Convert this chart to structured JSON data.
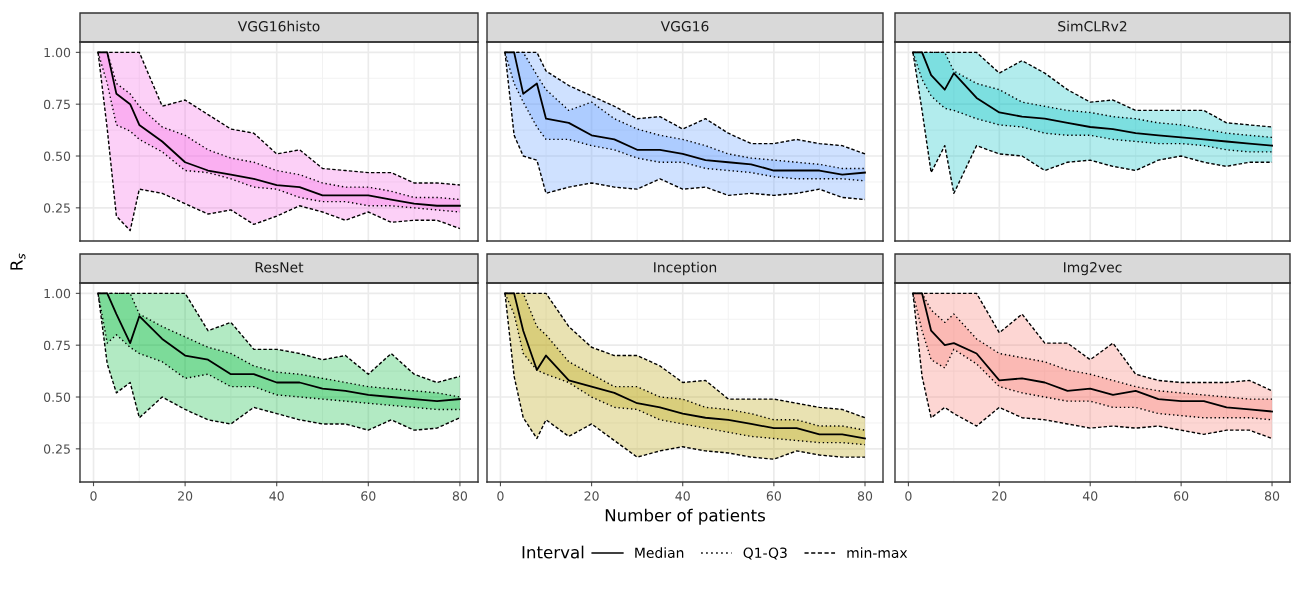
{
  "chart_data": [
    {
      "type": "line",
      "title": "VGG16histo",
      "ylabel": "R$_{s}$",
      "legend": "bottom",
      "legend_title": "Interval",
      "grid": true,
      "tick_labels": "y",
      "color": "#f564e3",
      "xlim": [
        -2.95,
        83.95
      ],
      "ylim": [
        0.09,
        1.05
      ],
      "xticks": [
        {
          "value": 0,
          "label": null
        },
        {
          "value": 20,
          "label": null
        },
        {
          "value": 40,
          "label": null
        },
        {
          "value": 60,
          "label": null
        },
        {
          "value": 80,
          "label": null
        }
      ],
      "yticks": [
        {
          "value": 0.25,
          "label": "0.25"
        },
        {
          "value": 0.5,
          "label": "0.50"
        },
        {
          "value": 0.75,
          "label": "0.75"
        },
        {
          "value": 1.0,
          "label": "1.00"
        }
      ],
      "x": [
        1,
        3,
        5,
        8,
        10,
        15,
        20,
        25,
        30,
        35,
        40,
        45,
        50,
        55,
        60,
        65,
        70,
        75,
        80
      ],
      "series": [
        {
          "name": "min-max",
          "color": "#000000",
          "line_style": "dashed",
          "values": [
            1.0,
            0.63,
            0.21,
            0.14,
            0.34,
            0.32,
            0.27,
            0.22,
            0.24,
            0.17,
            0.21,
            0.26,
            0.23,
            0.19,
            0.23,
            0.18,
            0.19,
            0.19,
            0.15
          ]
        },
        {
          "color": "#000000",
          "line_style": "dashed",
          "values": [
            1.0,
            1.0,
            1.0,
            1.0,
            1.0,
            0.74,
            0.77,
            0.7,
            0.63,
            0.61,
            0.51,
            0.53,
            0.44,
            0.43,
            0.42,
            0.42,
            0.37,
            0.37,
            0.36
          ]
        },
        {
          "name": "Q1-Q3",
          "color": "#000000",
          "line_style": "dotted",
          "values": [
            1.0,
            0.85,
            0.65,
            0.62,
            0.58,
            0.52,
            0.43,
            0.42,
            0.39,
            0.35,
            0.34,
            0.3,
            0.28,
            0.28,
            0.26,
            0.26,
            0.25,
            0.24,
            0.23
          ]
        },
        {
          "color": "#000000",
          "line_style": "dotted",
          "values": [
            1.0,
            1.0,
            0.85,
            0.8,
            0.74,
            0.64,
            0.6,
            0.53,
            0.49,
            0.47,
            0.43,
            0.41,
            0.37,
            0.35,
            0.35,
            0.33,
            0.3,
            0.3,
            0.29
          ]
        },
        {
          "name": "Median",
          "color": "#000000",
          "line_style": "solid",
          "values": [
            1.0,
            1.0,
            0.8,
            0.75,
            0.65,
            0.57,
            0.47,
            0.43,
            0.41,
            0.39,
            0.36,
            0.35,
            0.31,
            0.31,
            0.31,
            0.29,
            0.27,
            0.26,
            0.26
          ]
        }
      ]
    },
    {
      "type": "line",
      "title": "VGG16",
      "grid": true,
      "tick_labels": false,
      "color": "#619cff",
      "xlim": [
        -2.95,
        83.95
      ],
      "ylim": [
        0.09,
        1.05
      ],
      "xticks": [
        {
          "value": 0,
          "label": null
        },
        {
          "value": 20,
          "label": null
        },
        {
          "value": 40,
          "label": null
        },
        {
          "value": 60,
          "label": null
        },
        {
          "value": 80,
          "label": null
        }
      ],
      "yticks": [
        {
          "value": 0.25,
          "label": null
        },
        {
          "value": 0.5,
          "label": null
        },
        {
          "value": 0.75,
          "label": null
        },
        {
          "value": 1.0,
          "label": null
        }
      ],
      "x": [
        1,
        3,
        5,
        8,
        10,
        15,
        20,
        25,
        30,
        35,
        40,
        45,
        50,
        55,
        60,
        65,
        70,
        75,
        80
      ],
      "series": [
        {
          "color": "#000000",
          "line_style": "dashed",
          "values": [
            1.0,
            0.6,
            0.5,
            0.48,
            0.32,
            0.35,
            0.37,
            0.35,
            0.34,
            0.39,
            0.34,
            0.35,
            0.31,
            0.32,
            0.31,
            0.32,
            0.34,
            0.3,
            0.29
          ]
        },
        {
          "color": "#000000",
          "line_style": "dashed",
          "values": [
            1.0,
            1.0,
            1.0,
            1.0,
            0.91,
            0.84,
            0.79,
            0.74,
            0.68,
            0.69,
            0.63,
            0.68,
            0.61,
            0.56,
            0.56,
            0.58,
            0.56,
            0.55,
            0.51
          ]
        },
        {
          "color": "#000000",
          "line_style": "dotted",
          "values": [
            1.0,
            0.85,
            0.76,
            0.64,
            0.58,
            0.58,
            0.55,
            0.53,
            0.49,
            0.47,
            0.47,
            0.44,
            0.43,
            0.42,
            0.4,
            0.39,
            0.39,
            0.39,
            0.38
          ]
        },
        {
          "color": "#000000",
          "line_style": "dotted",
          "values": [
            1.0,
            1.0,
            1.0,
            0.89,
            0.82,
            0.72,
            0.76,
            0.68,
            0.63,
            0.6,
            0.58,
            0.55,
            0.51,
            0.49,
            0.48,
            0.47,
            0.46,
            0.44,
            0.44
          ]
        },
        {
          "color": "#000000",
          "line_style": "solid",
          "values": [
            1.0,
            1.0,
            0.8,
            0.85,
            0.68,
            0.66,
            0.6,
            0.58,
            0.53,
            0.53,
            0.51,
            0.48,
            0.47,
            0.46,
            0.43,
            0.43,
            0.43,
            0.41,
            0.42
          ]
        }
      ]
    },
    {
      "type": "line",
      "title": "SimCLRv2",
      "grid": true,
      "tick_labels": false,
      "color": "#00bfc4",
      "xlim": [
        -2.95,
        83.95
      ],
      "ylim": [
        0.09,
        1.05
      ],
      "xticks": [
        {
          "value": 0,
          "label": null
        },
        {
          "value": 20,
          "label": null
        },
        {
          "value": 40,
          "label": null
        },
        {
          "value": 60,
          "label": null
        },
        {
          "value": 80,
          "label": null
        }
      ],
      "yticks": [
        {
          "value": 0.25,
          "label": null
        },
        {
          "value": 0.5,
          "label": null
        },
        {
          "value": 0.75,
          "label": null
        },
        {
          "value": 1.0,
          "label": null
        }
      ],
      "x": [
        1,
        3,
        5,
        8,
        10,
        15,
        20,
        25,
        30,
        35,
        40,
        45,
        50,
        55,
        60,
        65,
        70,
        75,
        80
      ],
      "series": [
        {
          "color": "#000000",
          "line_style": "dashed",
          "values": [
            1.0,
            0.72,
            0.42,
            0.55,
            0.32,
            0.55,
            0.51,
            0.5,
            0.43,
            0.47,
            0.48,
            0.45,
            0.43,
            0.48,
            0.5,
            0.47,
            0.45,
            0.47,
            0.47
          ]
        },
        {
          "color": "#000000",
          "line_style": "dashed",
          "values": [
            1.0,
            1.0,
            1.0,
            1.0,
            1.0,
            1.0,
            0.9,
            0.96,
            0.9,
            0.82,
            0.76,
            0.77,
            0.72,
            0.72,
            0.72,
            0.72,
            0.66,
            0.65,
            0.64
          ]
        },
        {
          "color": "#000000",
          "line_style": "dotted",
          "values": [
            1.0,
            0.87,
            0.79,
            0.73,
            0.72,
            0.68,
            0.65,
            0.64,
            0.61,
            0.6,
            0.6,
            0.58,
            0.57,
            0.56,
            0.56,
            0.55,
            0.53,
            0.52,
            0.52
          ]
        },
        {
          "color": "#000000",
          "line_style": "dotted",
          "values": [
            1.0,
            1.0,
            1.0,
            1.0,
            0.91,
            0.85,
            0.82,
            0.76,
            0.74,
            0.72,
            0.71,
            0.69,
            0.68,
            0.66,
            0.65,
            0.63,
            0.61,
            0.6,
            0.59
          ]
        },
        {
          "color": "#000000",
          "line_style": "solid",
          "values": [
            1.0,
            1.0,
            0.89,
            0.82,
            0.9,
            0.78,
            0.71,
            0.69,
            0.68,
            0.66,
            0.64,
            0.63,
            0.61,
            0.6,
            0.59,
            0.58,
            0.57,
            0.56,
            0.55
          ]
        }
      ]
    },
    {
      "type": "line",
      "title": "ResNet",
      "grid": true,
      "color": "#00ba38",
      "xlim": [
        -2.95,
        83.95
      ],
      "ylim": [
        0.09,
        1.05
      ],
      "xticks": [
        0,
        20,
        40,
        60,
        80
      ],
      "yticks": [
        {
          "value": 0.25,
          "label": "0.25"
        },
        {
          "value": 0.5,
          "label": "0.50"
        },
        {
          "value": 0.75,
          "label": "0.75"
        },
        {
          "value": 1.0,
          "label": "1.00"
        }
      ],
      "x": [
        1,
        3,
        5,
        8,
        10,
        15,
        20,
        25,
        30,
        35,
        40,
        45,
        50,
        55,
        60,
        65,
        70,
        75,
        80
      ],
      "series": [
        {
          "color": "#000000",
          "line_style": "dashed",
          "values": [
            1.0,
            0.66,
            0.52,
            0.57,
            0.4,
            0.5,
            0.44,
            0.39,
            0.37,
            0.45,
            0.42,
            0.39,
            0.37,
            0.37,
            0.34,
            0.39,
            0.34,
            0.35,
            0.4
          ]
        },
        {
          "color": "#000000",
          "line_style": "dashed",
          "values": [
            1.0,
            1.0,
            1.0,
            1.0,
            1.0,
            1.0,
            1.0,
            0.82,
            0.86,
            0.73,
            0.73,
            0.71,
            0.68,
            0.7,
            0.61,
            0.71,
            0.61,
            0.57,
            0.6
          ]
        },
        {
          "color": "#000000",
          "line_style": "dotted",
          "values": [
            1.0,
            0.76,
            0.8,
            0.74,
            0.71,
            0.67,
            0.59,
            0.61,
            0.55,
            0.55,
            0.51,
            0.5,
            0.49,
            0.48,
            0.47,
            0.46,
            0.45,
            0.44,
            0.44
          ]
        },
        {
          "color": "#000000",
          "line_style": "dotted",
          "values": [
            1.0,
            1.0,
            1.0,
            1.0,
            0.9,
            0.84,
            0.79,
            0.74,
            0.71,
            0.65,
            0.62,
            0.61,
            0.59,
            0.57,
            0.55,
            0.54,
            0.53,
            0.52,
            0.5
          ]
        },
        {
          "color": "#000000",
          "line_style": "solid",
          "values": [
            1.0,
            1.0,
            0.9,
            0.76,
            0.89,
            0.78,
            0.7,
            0.68,
            0.61,
            0.61,
            0.57,
            0.57,
            0.54,
            0.53,
            0.51,
            0.5,
            0.49,
            0.48,
            0.49
          ]
        }
      ]
    },
    {
      "type": "line",
      "title": "Inception",
      "xlabel": "Number of patients",
      "grid": true,
      "tick_labels": "x",
      "color": "#b79f00",
      "xlim": [
        -2.95,
        83.95
      ],
      "ylim": [
        0.09,
        1.05
      ],
      "xticks": [
        0,
        20,
        40,
        60,
        80
      ],
      "yticks": [
        {
          "value": 0.25,
          "label": null
        },
        {
          "value": 0.5,
          "label": null
        },
        {
          "value": 0.75,
          "label": null
        },
        {
          "value": 1.0,
          "label": null
        }
      ],
      "x": [
        1,
        3,
        5,
        8,
        10,
        15,
        20,
        25,
        30,
        35,
        40,
        45,
        50,
        55,
        60,
        65,
        70,
        75,
        80
      ],
      "series": [
        {
          "color": "#000000",
          "line_style": "dashed",
          "values": [
            1.0,
            0.6,
            0.4,
            0.3,
            0.39,
            0.31,
            0.37,
            0.29,
            0.21,
            0.24,
            0.26,
            0.24,
            0.23,
            0.21,
            0.2,
            0.24,
            0.22,
            0.21,
            0.21
          ]
        },
        {
          "color": "#000000",
          "line_style": "dashed",
          "values": [
            1.0,
            1.0,
            1.0,
            1.0,
            1.0,
            0.84,
            0.74,
            0.7,
            0.7,
            0.65,
            0.57,
            0.58,
            0.49,
            0.49,
            0.49,
            0.47,
            0.45,
            0.44,
            0.4
          ]
        },
        {
          "color": "#000000",
          "line_style": "dotted",
          "values": [
            1.0,
            0.9,
            0.71,
            0.63,
            0.61,
            0.57,
            0.5,
            0.45,
            0.44,
            0.39,
            0.37,
            0.35,
            0.33,
            0.31,
            0.3,
            0.29,
            0.28,
            0.28,
            0.27
          ]
        },
        {
          "color": "#000000",
          "line_style": "dotted",
          "values": [
            1.0,
            1.0,
            1.0,
            0.84,
            0.8,
            0.67,
            0.61,
            0.55,
            0.55,
            0.5,
            0.49,
            0.45,
            0.44,
            0.42,
            0.39,
            0.39,
            0.36,
            0.36,
            0.34
          ]
        },
        {
          "color": "#000000",
          "line_style": "solid",
          "values": [
            1.0,
            1.0,
            0.82,
            0.63,
            0.7,
            0.58,
            0.55,
            0.52,
            0.47,
            0.45,
            0.42,
            0.4,
            0.39,
            0.37,
            0.35,
            0.35,
            0.32,
            0.32,
            0.3
          ]
        }
      ]
    },
    {
      "type": "line",
      "title": "Img2vec",
      "grid": true,
      "tick_labels": "x",
      "color": "#f8766d",
      "xlim": [
        -2.95,
        83.95
      ],
      "ylim": [
        0.09,
        1.05
      ],
      "xticks": [
        0,
        20,
        40,
        60,
        80
      ],
      "yticks": [
        {
          "value": 0.25,
          "label": null
        },
        {
          "value": 0.5,
          "label": null
        },
        {
          "value": 0.75,
          "label": null
        },
        {
          "value": 1.0,
          "label": null
        }
      ],
      "x": [
        1,
        3,
        5,
        8,
        10,
        15,
        20,
        25,
        30,
        35,
        40,
        45,
        50,
        55,
        60,
        65,
        70,
        75,
        80
      ],
      "series": [
        {
          "color": "#000000",
          "line_style": "dashed",
          "values": [
            1.0,
            0.6,
            0.4,
            0.45,
            0.42,
            0.36,
            0.45,
            0.4,
            0.39,
            0.37,
            0.35,
            0.36,
            0.35,
            0.36,
            0.34,
            0.32,
            0.34,
            0.34,
            0.3
          ]
        },
        {
          "color": "#000000",
          "line_style": "dashed",
          "values": [
            1.0,
            1.0,
            1.0,
            1.0,
            1.0,
            1.0,
            0.81,
            0.9,
            0.76,
            0.76,
            0.68,
            0.76,
            0.61,
            0.58,
            0.57,
            0.57,
            0.57,
            0.58,
            0.53
          ]
        },
        {
          "color": "#000000",
          "line_style": "dotted",
          "values": [
            1.0,
            0.82,
            0.68,
            0.64,
            0.73,
            0.66,
            0.55,
            0.52,
            0.5,
            0.48,
            0.48,
            0.45,
            0.45,
            0.42,
            0.41,
            0.4,
            0.4,
            0.4,
            0.39
          ]
        },
        {
          "color": "#000000",
          "line_style": "dotted",
          "values": [
            1.0,
            1.0,
            0.92,
            0.86,
            0.9,
            0.78,
            0.71,
            0.69,
            0.67,
            0.63,
            0.61,
            0.58,
            0.55,
            0.53,
            0.52,
            0.51,
            0.5,
            0.49,
            0.49
          ]
        },
        {
          "color": "#000000",
          "line_style": "solid",
          "values": [
            1.0,
            1.0,
            0.82,
            0.75,
            0.76,
            0.71,
            0.58,
            0.59,
            0.57,
            0.53,
            0.54,
            0.51,
            0.53,
            0.49,
            0.48,
            0.48,
            0.45,
            0.44,
            0.43
          ]
        }
      ]
    }
  ]
}
